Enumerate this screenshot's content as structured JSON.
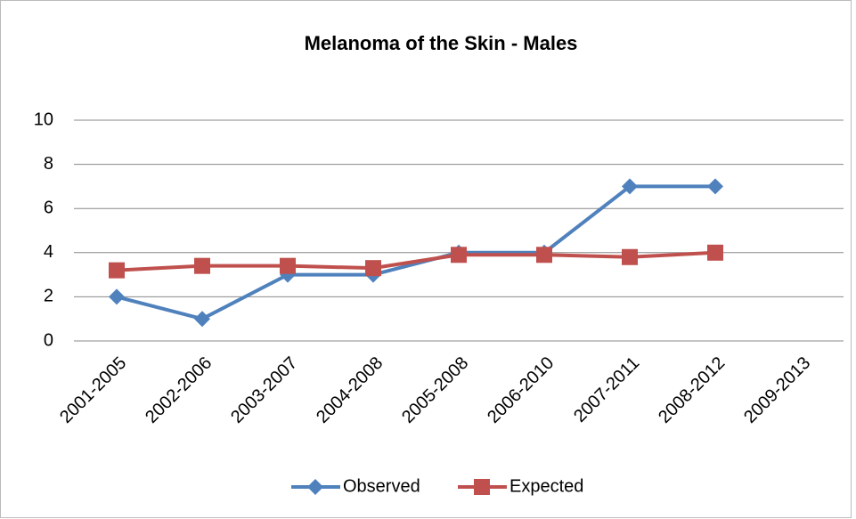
{
  "chart_data": {
    "type": "line",
    "title": "Melanoma of the Skin - Males",
    "categories": [
      "2001-2005",
      "2002-2006",
      "2003-2007",
      "2004-2008",
      "2005-2008",
      "2006-2010",
      "2007-2011",
      "2008-2012",
      "2009-2013"
    ],
    "series": [
      {
        "name": "Observed",
        "color": "#4f81bd",
        "marker": "diamond",
        "values": [
          2,
          1,
          3,
          3,
          4,
          4,
          7,
          7,
          null
        ]
      },
      {
        "name": "Expected",
        "color": "#c0504d",
        "marker": "square",
        "values": [
          3.2,
          3.4,
          3.4,
          3.3,
          3.9,
          3.9,
          3.8,
          4.0,
          null
        ]
      }
    ],
    "ylim": [
      0,
      10
    ],
    "yticks": [
      0,
      2,
      4,
      6,
      8,
      10
    ],
    "grid": true,
    "legend": "bottom"
  }
}
